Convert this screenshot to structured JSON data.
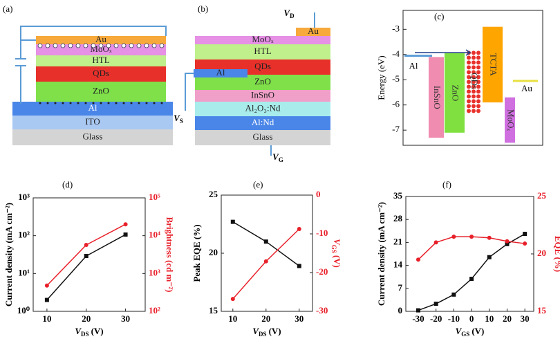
{
  "diagrams": [
    {
      "label": "(a)",
      "layers": [
        {
          "label": "Au",
          "color": "#f7a93b"
        },
        {
          "label": "MoOₓ",
          "color": "#e690e6"
        },
        {
          "label": "HTL",
          "color": "#bff08c"
        },
        {
          "label": "QDs",
          "color": "#e8302a"
        },
        {
          "label": "ZnO",
          "color": "#7fe04a"
        },
        {
          "label": "Al",
          "color": "#4a86e8"
        },
        {
          "label": "ITO",
          "color": "#a9c9f2"
        },
        {
          "label": "Glass",
          "color": "#d4d4d4"
        }
      ]
    },
    {
      "label": "(b)",
      "layers": [
        {
          "label": "MoOₓ",
          "color": "#e690e6"
        },
        {
          "label": "HTL",
          "color": "#bff08c"
        },
        {
          "label": "QDs",
          "color": "#e8302a"
        },
        {
          "label": "ZnO",
          "color": "#7fe04a"
        },
        {
          "label": "InSnO",
          "color": "#f0a0c8"
        },
        {
          "label": "Al₂O₃:Nd",
          "color": "#a8ecec"
        },
        {
          "label": "Al:Nd",
          "color": "#4a86e8"
        },
        {
          "label": "Glass",
          "color": "#d4d4d4"
        }
      ],
      "contacts": [
        {
          "label": "Au",
          "color": "#f7a93b"
        },
        {
          "label": "Al",
          "color": "#4a86e8"
        }
      ],
      "voltages": [
        {
          "symbol": "V",
          "subscript": "D"
        },
        {
          "symbol": "V",
          "subscript": "S"
        },
        {
          "symbol": "V",
          "subscript": "G"
        }
      ]
    }
  ],
  "chart_data": [
    {
      "type": "band",
      "label": "(c)",
      "y_label": "Energy (eV)",
      "ylim": [
        -7.6,
        -2.25
      ],
      "yticks": [
        -3,
        -4,
        -5,
        -6,
        -7
      ],
      "levels": [
        {
          "name": "Al",
          "level": -4.05,
          "color": "#5b9bd5"
        },
        {
          "name": "Au",
          "level": -5.05,
          "color": "#e8e040"
        }
      ],
      "bands": [
        {
          "name": "InSnO",
          "top": -4.1,
          "bottom": -7.3,
          "color": "#f08cb0"
        },
        {
          "name": "ZnO",
          "top": -3.95,
          "bottom": -7.1,
          "color": "#7fe040"
        },
        {
          "name": "QDs",
          "top": -3.85,
          "bottom": -6.25,
          "color": "#e8302a"
        },
        {
          "name": "TCTA",
          "top": -2.9,
          "bottom": -5.9,
          "color": "#ffa500"
        },
        {
          "name": "MoOₓ",
          "top": -5.7,
          "bottom": -7.5,
          "color": "#d070e0"
        }
      ]
    },
    {
      "type": "line",
      "label": "(d)",
      "x_label": {
        "symbol": "V",
        "subscript": "DS",
        "unit": "(V)"
      },
      "y_label": "Current density (mA cm⁻²)",
      "y2_label": "Brightness (cd m⁻²)",
      "x": [
        10,
        20,
        30
      ],
      "xlim": [
        6.5,
        35
      ],
      "xticks": [
        10,
        20,
        30
      ],
      "yscale": "log",
      "ylim": [
        1,
        1000
      ],
      "yticks": [
        {
          "value": 1,
          "label": "10⁰"
        },
        {
          "value": 10,
          "label": "10¹"
        },
        {
          "value": 100,
          "label": "10²"
        },
        {
          "value": 1000,
          "label": "10³"
        }
      ],
      "y2scale": "log",
      "y2lim": [
        100,
        100000
      ],
      "y2ticks": [
        {
          "value": 100,
          "label": "10²"
        },
        {
          "value": 1000,
          "label": "10³"
        },
        {
          "value": 10000,
          "label": "10⁴"
        },
        {
          "value": 100000,
          "label": "10⁵"
        }
      ],
      "series": [
        {
          "color": "#111111",
          "marker": "square",
          "values": [
            2,
            29,
            107
          ]
        },
        {
          "color": "#e8202a",
          "marker": "circle",
          "axis": "y2",
          "values": [
            480,
            5700,
            20000
          ]
        }
      ]
    },
    {
      "type": "line",
      "label": "(e)",
      "x_label": {
        "symbol": "V",
        "subscript": "DS",
        "unit": "(V)"
      },
      "y_label": "Peak EQE (%)",
      "y2_label": {
        "symbol": "V",
        "subscript": "GS",
        "unit": "(V)"
      },
      "x": [
        10,
        20,
        30
      ],
      "xlim": [
        6.5,
        34
      ],
      "xticks": [
        10,
        20,
        30
      ],
      "ylim": [
        15,
        25
      ],
      "yticks": [
        15,
        20,
        25
      ],
      "y2lim": [
        -30,
        0
      ],
      "y2ticks": [
        -30,
        -20,
        -10,
        0
      ],
      "series": [
        {
          "color": "#111111",
          "marker": "square",
          "values": [
            22.7,
            21.0,
            18.9
          ]
        },
        {
          "color": "#e8202a",
          "marker": "circle",
          "axis": "y2",
          "values": [
            -26.8,
            -17.1,
            -8.75
          ]
        }
      ]
    },
    {
      "type": "line",
      "label": "(f)",
      "x_label": {
        "symbol": "V",
        "subscript": "GS",
        "unit": "(V)"
      },
      "y_label": "Current density (mA cm⁻²)",
      "y2_label": "EQE (%)",
      "x": [
        -30,
        -20,
        -10,
        0,
        10,
        20,
        30
      ],
      "xlim": [
        -37,
        35
      ],
      "xticks": [
        -30,
        -20,
        -10,
        0,
        10,
        20,
        30
      ],
      "ylim": [
        0,
        35
      ],
      "yticks": [
        0,
        7,
        14,
        21,
        28,
        35
      ],
      "y2lim": [
        15,
        25
      ],
      "y2ticks": [
        15,
        20,
        25
      ],
      "series": [
        {
          "color": "#111111",
          "marker": "square",
          "values": [
            0.3,
            2.3,
            5.1,
            9.9,
            16.5,
            20.5,
            23.6
          ]
        },
        {
          "color": "#e8202a",
          "marker": "circle",
          "axis": "y2",
          "values": [
            19.5,
            21.0,
            21.5,
            21.5,
            21.4,
            21.1,
            20.9
          ]
        }
      ]
    }
  ]
}
